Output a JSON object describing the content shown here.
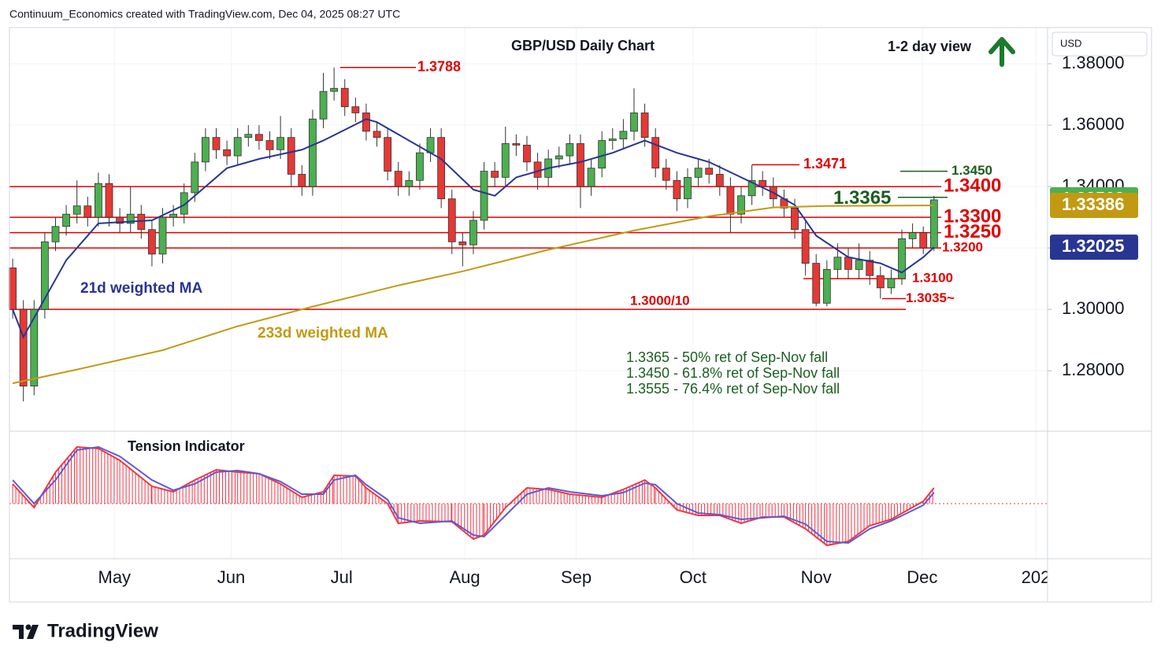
{
  "header": "Continuum_Economics created with TradingView.com, Dec 04, 2025 08:27 UTC",
  "brand": "TradingView",
  "chart_data": [
    {
      "type": "candlestick",
      "title": "GBP/USD Daily Chart",
      "view": "1-2 day view",
      "currency": "USD",
      "up_color": "#4caf50",
      "down_color": "#e53935",
      "categories": [
        null,
        null,
        null,
        null,
        null,
        null,
        null,
        null,
        null,
        null,
        null,
        null,
        null,
        null,
        null,
        null,
        null,
        null,
        null,
        null,
        null,
        null,
        null,
        null,
        null,
        null,
        null,
        null,
        null,
        null,
        null,
        null,
        null,
        null,
        null,
        null,
        null,
        null,
        null,
        null,
        null,
        null,
        null,
        null,
        null,
        null,
        null,
        null,
        null,
        null,
        null,
        null,
        null,
        null,
        null,
        null,
        null,
        null,
        null,
        null,
        null,
        null,
        null,
        null,
        null,
        null,
        null,
        null,
        null,
        null,
        null,
        null,
        null,
        null,
        null,
        null,
        null,
        null,
        null,
        null,
        null,
        null,
        null,
        null,
        null,
        null,
        null
      ],
      "open": [
        1.3135,
        1.3,
        1.275,
        1.3,
        1.322,
        1.327,
        1.331,
        1.3337,
        1.33,
        1.341,
        1.33,
        1.328,
        1.331,
        1.326,
        1.318,
        1.33,
        1.331,
        1.338,
        1.348,
        1.356,
        1.352,
        1.35,
        1.356,
        1.357,
        1.355,
        1.352,
        1.356,
        1.344,
        1.34,
        1.362,
        1.371,
        1.372,
        1.366,
        1.364,
        1.358,
        1.356,
        1.345,
        1.34,
        1.342,
        1.351,
        1.356,
        1.336,
        1.322,
        1.321,
        1.329,
        1.345,
        1.343,
        1.354,
        1.3535,
        1.348,
        1.343,
        1.349,
        1.35,
        1.354,
        1.34,
        1.346,
        1.355,
        1.3555,
        1.358,
        1.364,
        1.356,
        1.346,
        1.342,
        1.336,
        1.343,
        1.346,
        1.344,
        1.34,
        1.331,
        1.337,
        1.342,
        1.34,
        1.336,
        1.333,
        1.326,
        1.315,
        1.302,
        1.313,
        1.317,
        1.313,
        1.316,
        1.311,
        1.307,
        1.31,
        1.323,
        1.325,
        1.32
      ],
      "high": [
        1.3165,
        1.303,
        1.303,
        1.325,
        1.33,
        1.334,
        1.342,
        1.3367,
        1.3445,
        1.344,
        1.333,
        1.34,
        1.334,
        1.329,
        1.333,
        1.334,
        1.341,
        1.351,
        1.359,
        1.359,
        1.355,
        1.359,
        1.36,
        1.36,
        1.358,
        1.363,
        1.359,
        1.347,
        1.365,
        1.377,
        1.3788,
        1.375,
        1.369,
        1.367,
        1.361,
        1.359,
        1.348,
        1.345,
        1.354,
        1.359,
        1.359,
        1.339,
        1.325,
        1.332,
        1.348,
        1.348,
        1.3595,
        1.357,
        1.3565,
        1.351,
        1.352,
        1.353,
        1.357,
        1.357,
        1.349,
        1.358,
        1.359,
        1.362,
        1.372,
        1.367,
        1.359,
        1.349,
        1.345,
        1.346,
        1.349,
        1.349,
        1.347,
        1.343,
        1.34,
        1.3471,
        1.345,
        1.343,
        1.339,
        1.336,
        1.329,
        1.318,
        1.316,
        1.3215,
        1.32,
        1.3215,
        1.319,
        1.314,
        1.313,
        1.326,
        1.328,
        1.327,
        1.337
      ],
      "low": [
        1.297,
        1.27,
        1.272,
        1.297,
        1.319,
        1.324,
        1.328,
        1.327,
        1.327,
        1.327,
        1.325,
        1.325,
        1.323,
        1.314,
        1.315,
        1.327,
        1.328,
        1.335,
        1.345,
        1.349,
        1.347,
        1.347,
        1.353,
        1.352,
        1.349,
        1.349,
        1.34,
        1.337,
        1.337,
        1.359,
        1.368,
        1.363,
        1.361,
        1.355,
        1.353,
        1.342,
        1.337,
        1.337,
        1.339,
        1.348,
        1.333,
        1.318,
        1.314,
        1.318,
        1.326,
        1.34,
        1.34,
        1.35,
        1.345,
        1.339,
        1.34,
        1.346,
        1.347,
        1.333,
        1.337,
        1.343,
        1.352,
        1.3525,
        1.355,
        1.353,
        1.343,
        1.339,
        1.332,
        1.333,
        1.34,
        1.341,
        1.337,
        1.325,
        1.328,
        1.334,
        1.337,
        1.333,
        1.33,
        1.323,
        1.311,
        1.301,
        1.301,
        1.31,
        1.31,
        1.31,
        1.308,
        1.3035,
        1.305,
        1.308,
        1.32,
        1.318,
        1.319
      ],
      "close": [
        1.3,
        1.275,
        1.3,
        1.322,
        1.327,
        1.331,
        1.3337,
        1.33,
        1.341,
        1.33,
        1.328,
        1.331,
        1.326,
        1.318,
        1.33,
        1.331,
        1.338,
        1.348,
        1.356,
        1.352,
        1.35,
        1.356,
        1.357,
        1.355,
        1.352,
        1.356,
        1.344,
        1.34,
        1.362,
        1.371,
        1.372,
        1.366,
        1.364,
        1.358,
        1.356,
        1.345,
        1.34,
        1.342,
        1.351,
        1.356,
        1.336,
        1.322,
        1.321,
        1.329,
        1.345,
        1.343,
        1.354,
        1.3535,
        1.348,
        1.343,
        1.349,
        1.35,
        1.354,
        1.34,
        1.346,
        1.355,
        1.3555,
        1.358,
        1.364,
        1.356,
        1.346,
        1.342,
        1.336,
        1.343,
        1.346,
        1.344,
        1.34,
        1.331,
        1.337,
        1.342,
        1.34,
        1.336,
        1.333,
        1.326,
        1.315,
        1.302,
        1.313,
        1.317,
        1.313,
        1.316,
        1.311,
        1.307,
        1.31,
        1.323,
        1.325,
        1.32,
        1.33568
      ],
      "series": [
        {
          "name": "21d weighted MA",
          "color": "#283593",
          "x": [
            0,
            1,
            5,
            8,
            13,
            16,
            20,
            23,
            27,
            29,
            33,
            34,
            37,
            40,
            43,
            45,
            47,
            50,
            53,
            56,
            59,
            62,
            65,
            68,
            71,
            73,
            75,
            78,
            81,
            83,
            85,
            86
          ],
          "values": [
            1.3,
            1.291,
            1.316,
            1.328,
            1.329,
            1.334,
            1.346,
            1.349,
            1.352,
            1.355,
            1.362,
            1.361,
            1.355,
            1.349,
            1.339,
            1.337,
            1.343,
            1.346,
            1.348,
            1.351,
            1.355,
            1.351,
            1.348,
            1.343,
            1.338,
            1.334,
            1.324,
            1.317,
            1.315,
            1.312,
            1.317,
            1.32025
          ]
        },
        {
          "name": "233d weighted MA",
          "color": "#c29a12",
          "x": [
            0,
            6,
            14,
            21,
            28,
            36,
            42,
            50,
            58,
            65,
            71,
            76,
            86
          ],
          "values": [
            1.2759,
            1.2804,
            1.2867,
            1.2945,
            1.3009,
            1.3078,
            1.3124,
            1.3194,
            1.3257,
            1.3303,
            1.3332,
            1.3337,
            1.33386
          ]
        }
      ],
      "levels": [
        {
          "value": 1.3788,
          "label": "1.3788",
          "color": "#e00000"
        },
        {
          "value": 1.3471,
          "label": "1.3471",
          "color": "#e00000"
        },
        {
          "value": 1.345,
          "label": "1.3450",
          "color": "#1b5e20"
        },
        {
          "value": 1.34,
          "label": "1.3400",
          "color": "#e00000"
        },
        {
          "value": 1.3365,
          "label": "1.3365",
          "color": "#1b5e20"
        },
        {
          "value": 1.33,
          "label": "1.3300",
          "color": "#e00000"
        },
        {
          "value": 1.325,
          "label": "1.3250",
          "color": "#e00000"
        },
        {
          "value": 1.32,
          "label": "1.3200",
          "color": "#e00000"
        },
        {
          "value": 1.31,
          "label": "1.3100",
          "color": "#e00000"
        },
        {
          "value": 1.3035,
          "label": "1.3035~",
          "color": "#e00000"
        },
        {
          "value": 1.3,
          "label": "1.3000/10",
          "color": "#e00000"
        }
      ],
      "notes": [
        "1.3365 - 50% ret of Sep-Nov fall",
        "1.3450 - 61.8% ret of Sep-Nov fall",
        "1.3555 - 76.4% ret of Sep-Nov fall"
      ],
      "xlim": [
        -0.3,
        96.6
      ],
      "xticks": [
        {
          "value": 9.5,
          "label": "May"
        },
        {
          "value": 20.4,
          "label": "Jun"
        },
        {
          "value": 30.7,
          "label": "Jul"
        },
        {
          "value": 42.2,
          "label": "Aug"
        },
        {
          "value": 52.6,
          "label": "Sep"
        },
        {
          "value": 63.5,
          "label": "Oct"
        },
        {
          "value": 75,
          "label": "Nov"
        },
        {
          "value": 84.9,
          "label": "Dec"
        },
        {
          "value": 95.5,
          "label": "202"
        }
      ],
      "ylim": [
        1.2603,
        1.3918
      ],
      "yticks": [
        {
          "value": 1.28,
          "label": "1.28000"
        },
        {
          "value": 1.3,
          "label": "1.30000"
        },
        {
          "value": 1.32,
          "label": "1.32000"
        },
        {
          "value": 1.34,
          "label": "1.34000"
        },
        {
          "value": 1.36,
          "label": "1.36000"
        },
        {
          "value": 1.38,
          "label": "1.38000"
        }
      ],
      "grid": true
    },
    {
      "type": "line",
      "title": "Tension Indicator",
      "xlim": [
        -0.3,
        96.6
      ],
      "ylim": [
        -70,
        90
      ],
      "x": [
        0,
        2,
        4,
        6,
        8,
        10,
        13,
        15,
        17,
        19,
        21,
        23,
        25,
        27,
        29,
        30,
        32,
        33,
        35,
        36,
        38,
        41,
        43,
        44,
        46,
        48,
        50,
        52,
        55,
        57,
        59,
        60,
        62,
        64,
        66,
        68,
        70,
        72,
        74,
        76,
        78,
        80,
        82,
        85,
        86
      ],
      "series": [
        {
          "color": "#f23645",
          "histogram": true,
          "values": [
            25,
            -5,
            40,
            72,
            70,
            55,
            22,
            15,
            30,
            43,
            40,
            38,
            25,
            8,
            15,
            36,
            35,
            20,
            0,
            -25,
            -22,
            -23,
            -45,
            -40,
            -5,
            20,
            18,
            12,
            8,
            18,
            30,
            20,
            -8,
            -15,
            -15,
            -25,
            -17,
            -17,
            -32,
            -53,
            -48,
            -28,
            -20,
            3,
            20
          ]
        },
        {
          "color": "#5b5bd6",
          "values": [
            30,
            0,
            30,
            68,
            72,
            60,
            30,
            17,
            25,
            40,
            42,
            38,
            28,
            12,
            12,
            30,
            36,
            24,
            5,
            -18,
            -25,
            -22,
            -40,
            -42,
            -15,
            12,
            20,
            15,
            10,
            14,
            26,
            24,
            0,
            -12,
            -14,
            -20,
            -18,
            -16,
            -26,
            -48,
            -50,
            -32,
            -22,
            -2,
            14
          ]
        }
      ]
    }
  ]
}
